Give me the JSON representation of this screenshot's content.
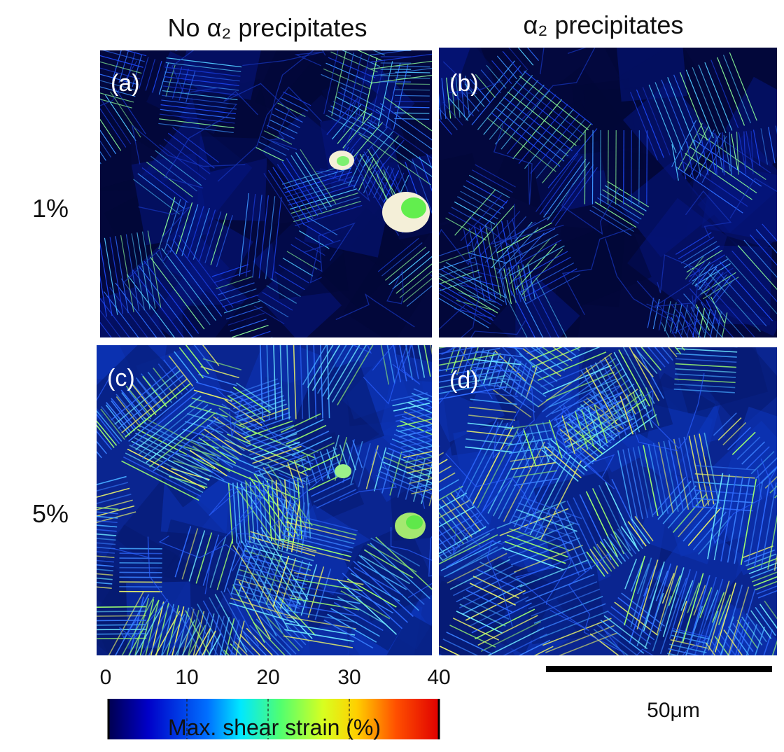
{
  "columns": [
    "No α₂ precipitates",
    "α₂ precipitates"
  ],
  "rows": [
    "1%",
    "5%"
  ],
  "panels": [
    "(a)",
    "(b)",
    "(c)",
    "(d)"
  ],
  "colorbar": {
    "label": "Max. shear strain (%)",
    "range": [
      0,
      40
    ],
    "ticks": [
      0,
      10,
      20,
      30,
      40
    ]
  },
  "scale_bar": {
    "label": "50μm"
  }
}
